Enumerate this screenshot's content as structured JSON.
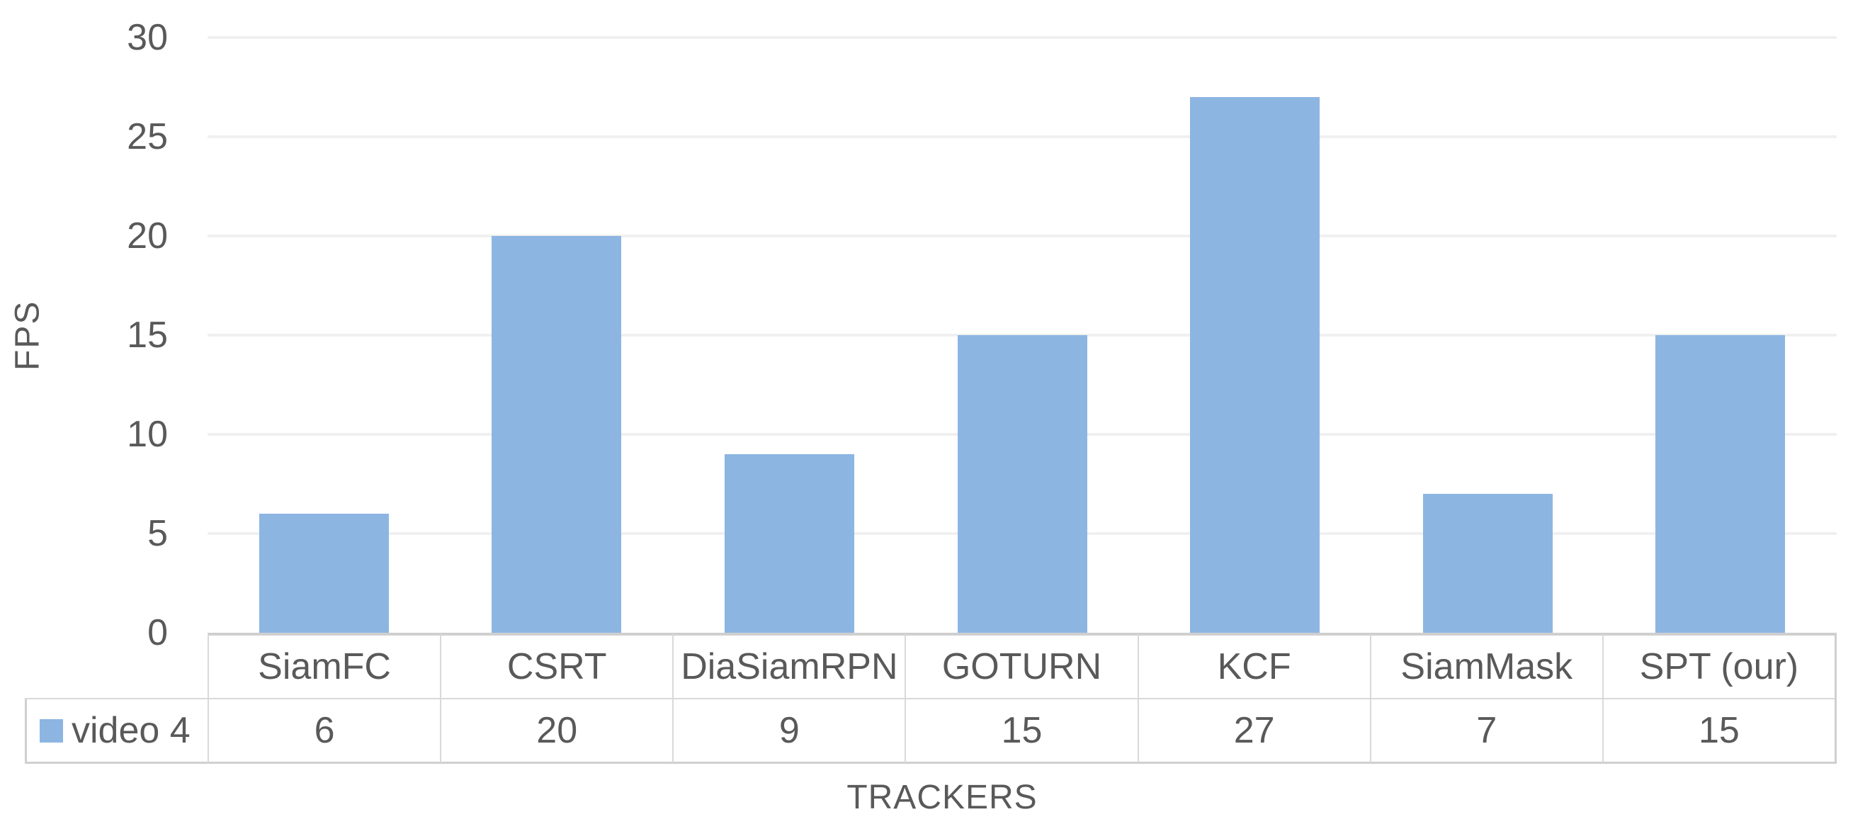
{
  "chart_data": {
    "type": "bar",
    "title": "",
    "categories": [
      "SiamFC",
      "CSRT",
      "DiaSiamRPN",
      "GOTURN",
      "KCF",
      "SiamMask",
      "SPT (our)"
    ],
    "series": [
      {
        "name": "video 4",
        "values": [
          6,
          20,
          9,
          15,
          27,
          7,
          15
        ]
      }
    ],
    "xlabel": "TRACKERS",
    "ylabel": "FPS",
    "ylim": [
      0,
      30
    ],
    "yticks": [
      0,
      5,
      10,
      15,
      20,
      25,
      30
    ],
    "grid": true,
    "legend_position": "data-table-left",
    "data_table_shown": true
  },
  "colors": {
    "bar": "#8CB5E2",
    "text": "#595959",
    "gridline": "#F0F0F0",
    "table_border_outer": "#CFCFCF",
    "table_border_inner": "#D9D9D9",
    "background": "#FFFFFF"
  }
}
